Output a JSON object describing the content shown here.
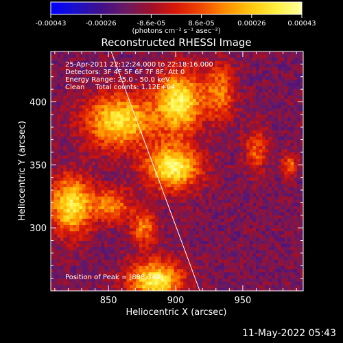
{
  "colorbar": {
    "ticks": [
      "-0.00043",
      "-0.00026",
      "-8.6e-05",
      "8.6e-05",
      "0.00026",
      "0.00043"
    ],
    "units": "(photons cm⁻² s⁻¹ asec⁻²)",
    "range": [
      -0.00043,
      0.00043
    ],
    "colormap": [
      "#0000ff",
      "#1a10c8",
      "#40108a",
      "#6a1a60",
      "#a0102a",
      "#d81808",
      "#f04a00",
      "#ff9000",
      "#ffc810",
      "#fff040",
      "#ffffa0"
    ]
  },
  "chart_data": {
    "type": "heatmap",
    "title": "Reconstructed RHESSI Image",
    "xlabel": "Heliocentric X (arcsec)",
    "ylabel": "Heliocentric Y (arcsec)",
    "xlim": [
      807,
      995
    ],
    "ylim": [
      250,
      440
    ],
    "xticks": [
      "850",
      "900",
      "950"
    ],
    "yticks": [
      "300",
      "350",
      "400"
    ],
    "xtick_values": [
      850,
      900,
      950
    ],
    "ytick_values": [
      300,
      350,
      400
    ],
    "limb_line": [
      [
        852,
        440
      ],
      [
        918,
        250
      ]
    ],
    "sources": [
      {
        "x": 898,
        "y": 348,
        "amp": 1.0,
        "sx": 14,
        "sy": 12
      },
      {
        "x": 903,
        "y": 400,
        "amp": 0.95,
        "sx": 12,
        "sy": 17
      },
      {
        "x": 858,
        "y": 385,
        "amp": 0.88,
        "sx": 18,
        "sy": 15
      },
      {
        "x": 822,
        "y": 318,
        "amp": 0.92,
        "sx": 11,
        "sy": 16
      },
      {
        "x": 885,
        "y": 258,
        "amp": 0.95,
        "sx": 14,
        "sy": 11
      },
      {
        "x": 933,
        "y": 408,
        "amp": 0.55,
        "sx": 8,
        "sy": 16
      },
      {
        "x": 852,
        "y": 318,
        "amp": 0.6,
        "sx": 10,
        "sy": 9
      },
      {
        "x": 960,
        "y": 362,
        "amp": 0.45,
        "sx": 6,
        "sy": 12
      },
      {
        "x": 985,
        "y": 350,
        "amp": 0.5,
        "sx": 4,
        "sy": 6
      },
      {
        "x": 876,
        "y": 300,
        "amp": 0.55,
        "sx": 7,
        "sy": 10
      }
    ],
    "background": -0.35,
    "noise": 0.18,
    "annotations": [
      "25-Apr-2011 22:12:24.000 to 22:18:16.000",
      "Detectors: 3F 4F 5F 6F 7F 8F, Att 0",
      "Energy Range: 25.0 - 50.0 keV",
      "Clean     Total counts: 1.12E+04"
    ],
    "peak_label": "Position of Peak = [898,348]",
    "peak": [
      898,
      348
    ]
  },
  "footer_timestamp": "11-May-2022 05:43"
}
